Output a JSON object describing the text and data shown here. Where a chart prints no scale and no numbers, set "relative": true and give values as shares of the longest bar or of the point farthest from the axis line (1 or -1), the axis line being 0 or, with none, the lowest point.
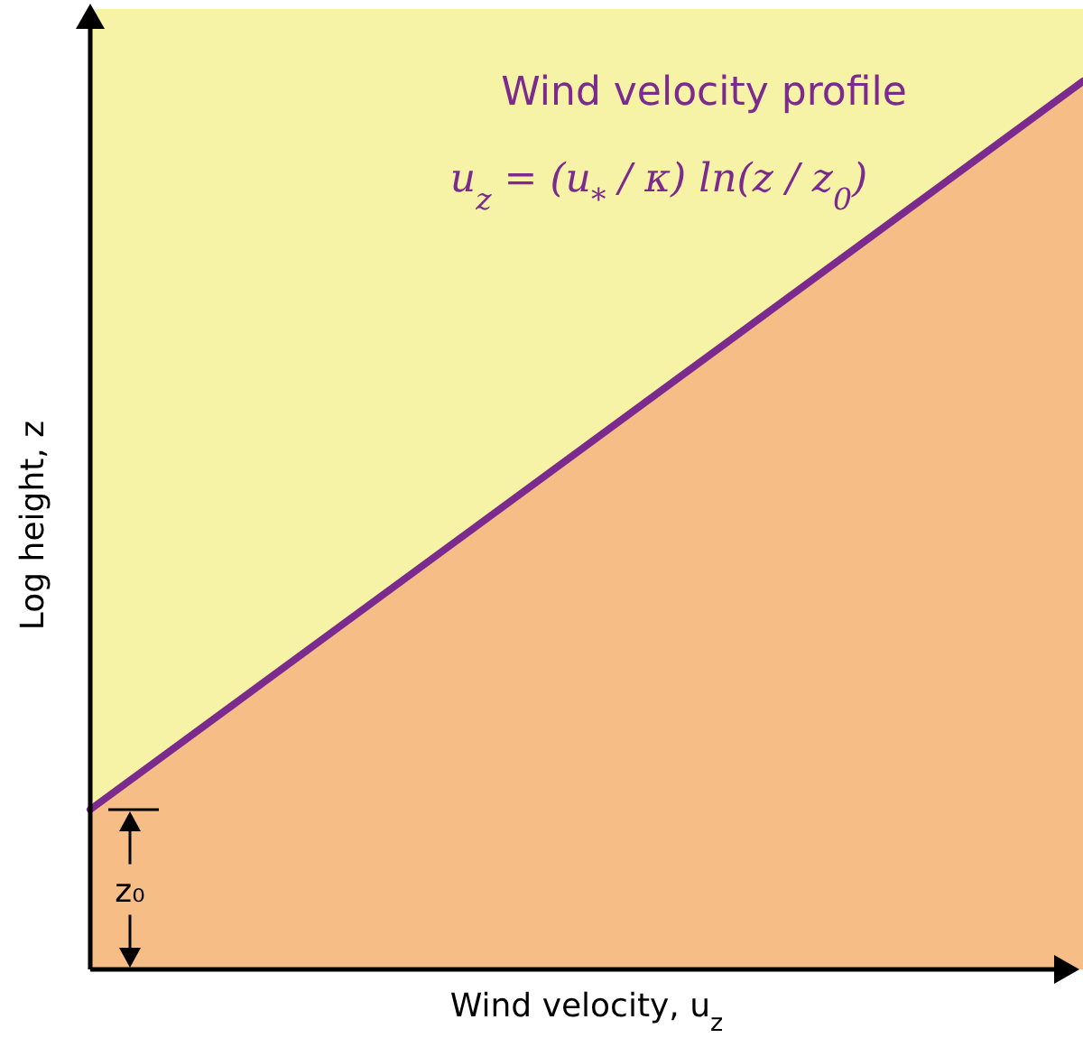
{
  "chart_data": {
    "type": "line",
    "relative": true,
    "title": "Wind velocity profile",
    "xlabel": "Wind velocity, u$_{z}$",
    "ylabel": "Log height, z",
    "categories": [
      null,
      null
    ],
    "series": [
      {
        "type": "area",
        "color": "#f6bd86",
        "values": [
          0.18,
          1
        ]
      },
      {
        "color": "#7b2b8e",
        "values": [
          0.18,
          1
        ]
      }
    ],
    "bands": [
      {
        "axis": "y",
        "from": 0,
        "to": 1,
        "color": "#f7f3a6"
      }
    ],
    "annotations": [
      "u$_{z}$ = (u$_{*}$ / κ) ln(z / z$_{0}$)",
      "z₀"
    ],
    "grid": false
  }
}
